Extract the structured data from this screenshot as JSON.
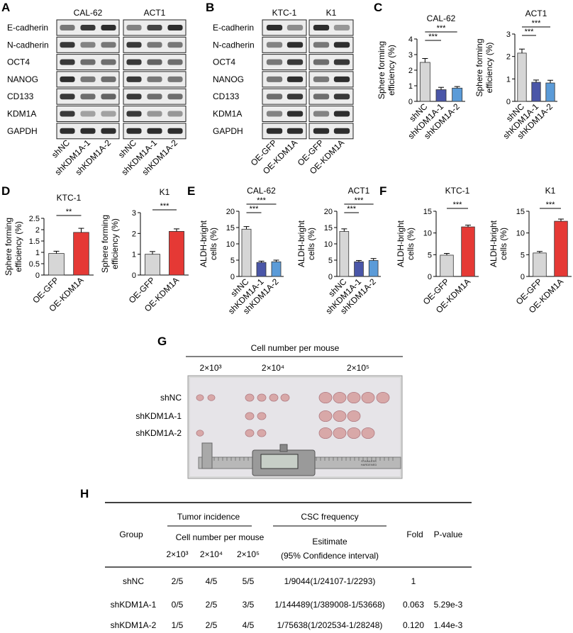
{
  "panels": {
    "A": {
      "letter": "A",
      "cell_lines": [
        "CAL-62",
        "ACT1"
      ],
      "proteins": [
        "E-cadherin",
        "N-cadherin",
        "OCT4",
        "NANOG",
        "CD133",
        "KDM1A",
        "GAPDH"
      ],
      "lanes": [
        "shNC",
        "shKDM1A-1",
        "shKDM1A-2",
        "shNC",
        "shKDM1A-1",
        "shKDM1A-2"
      ],
      "band_intensity": [
        [
          0.55,
          0.85,
          0.9,
          0.5,
          0.8,
          0.9
        ],
        [
          0.85,
          0.5,
          0.55,
          0.85,
          0.55,
          0.55
        ],
        [
          0.85,
          0.6,
          0.6,
          0.85,
          0.65,
          0.6
        ],
        [
          0.9,
          0.55,
          0.6,
          0.85,
          0.55,
          0.55
        ],
        [
          0.85,
          0.6,
          0.65,
          0.85,
          0.6,
          0.6
        ],
        [
          0.85,
          0.35,
          0.35,
          0.85,
          0.4,
          0.4
        ],
        [
          0.9,
          0.9,
          0.9,
          0.9,
          0.9,
          0.9
        ]
      ]
    },
    "B": {
      "letter": "B",
      "cell_lines": [
        "KTC-1",
        "K1"
      ],
      "proteins": [
        "E-cadherin",
        "N-cadherin",
        "OCT4",
        "NANOG",
        "CD133",
        "KDM1A",
        "GAPDH"
      ],
      "lanes": [
        "OE-GFP",
        "OE-KDM1A",
        "OE-GFP",
        "OE-KDM1A"
      ],
      "band_intensity": [
        [
          0.9,
          0.45,
          0.9,
          0.4
        ],
        [
          0.5,
          0.9,
          0.55,
          0.9
        ],
        [
          0.55,
          0.85,
          0.6,
          0.85
        ],
        [
          0.55,
          0.9,
          0.55,
          0.9
        ],
        [
          0.6,
          0.85,
          0.6,
          0.85
        ],
        [
          0.5,
          0.9,
          0.5,
          0.9
        ],
        [
          0.9,
          0.9,
          0.9,
          0.9
        ]
      ]
    },
    "C": {
      "letter": "C"
    },
    "D": {
      "letter": "D"
    },
    "E": {
      "letter": "E"
    },
    "F": {
      "letter": "F"
    },
    "G": {
      "letter": "G",
      "title": "Cell number per mouse",
      "cell_numbers": [
        "2×10³",
        "2×10⁴",
        "2×10⁵"
      ],
      "groups": [
        "shNC",
        "shKDM1A-1",
        "shKDM1A-2"
      ],
      "tumor_counts": [
        [
          2,
          4,
          5
        ],
        [
          0,
          2,
          3
        ],
        [
          1,
          2,
          4
        ]
      ],
      "ruler_text": [
        "STAINLESS",
        "HARDENED"
      ]
    },
    "H": {
      "letter": "H",
      "header": {
        "group": "Group",
        "tumor_incidence": "Tumor incidence",
        "csc_frequency": "CSC frequency",
        "cell_number": "Cell number per mouse",
        "doses": [
          "2×10³",
          "2×10⁴",
          "2×10⁵"
        ],
        "estimate": "Esitimate",
        "ci": "(95% Confidence interval)",
        "fold": "Fold",
        "pvalue": "P-value"
      },
      "rows": [
        {
          "group": "shNC",
          "incidence": [
            "2/5",
            "4/5",
            "5/5"
          ],
          "estimate": "1/9044(1/24107-1/2293)",
          "fold": "1",
          "pvalue": ""
        },
        {
          "group": "shKDM1A-1",
          "incidence": [
            "0/5",
            "2/5",
            "3/5"
          ],
          "estimate": "1/144489(1/389008-1/53668)",
          "fold": "0.063",
          "pvalue": "5.29e-3"
        },
        {
          "group": "shKDM1A-2",
          "incidence": [
            "1/5",
            "2/5",
            "4/5"
          ],
          "estimate": "1/75638(1/202534-1/28248)",
          "fold": "0.120",
          "pvalue": "1.44e-3"
        }
      ]
    }
  },
  "chart_data": [
    {
      "id": "C1",
      "panel": "C",
      "type": "bar",
      "title": "CAL-62",
      "ylabel": "Sphere forming efficiency (%)",
      "categories": [
        "shNC",
        "shKDM1A-1",
        "shKDM1A-2"
      ],
      "values": [
        2.5,
        0.75,
        0.85
      ],
      "errors": [
        0.25,
        0.15,
        0.1
      ],
      "colors": [
        "#d6d6d6",
        "#4a56a8",
        "#5b9bd8"
      ],
      "ylim": [
        0,
        4
      ],
      "yticks": [
        0,
        1,
        2,
        3,
        4
      ],
      "sig": [
        {
          "from": 0,
          "to": 1,
          "label": "***"
        },
        {
          "from": 0,
          "to": 2,
          "label": "***"
        }
      ]
    },
    {
      "id": "C2",
      "panel": "C",
      "type": "bar",
      "title": "ACT1",
      "ylabel": "Sphere forming efficiency (%)",
      "categories": [
        "shNC",
        "shKDM1A-1",
        "shKDM1A-2"
      ],
      "values": [
        2.15,
        0.85,
        0.82
      ],
      "errors": [
        0.18,
        0.1,
        0.12
      ],
      "colors": [
        "#d6d6d6",
        "#4a56a8",
        "#5b9bd8"
      ],
      "ylim": [
        0,
        3
      ],
      "yticks": [
        0,
        1,
        2,
        3
      ],
      "sig": [
        {
          "from": 0,
          "to": 1,
          "label": "***"
        },
        {
          "from": 0,
          "to": 2,
          "label": "***"
        }
      ]
    },
    {
      "id": "D1",
      "panel": "D",
      "type": "bar",
      "title": "KTC-1",
      "ylabel": "Sphere forming efficiency (%)",
      "categories": [
        "OE-GFP",
        "OE-KDM1A"
      ],
      "values": [
        0.95,
        1.88
      ],
      "errors": [
        0.1,
        0.18
      ],
      "colors": [
        "#d6d6d6",
        "#e53935"
      ],
      "ylim": [
        0,
        2.5
      ],
      "yticks": [
        0,
        0.5,
        1,
        1.5,
        2,
        2.5
      ],
      "sig": [
        {
          "from": 0,
          "to": 1,
          "label": "**"
        }
      ]
    },
    {
      "id": "D2",
      "panel": "D",
      "type": "bar",
      "title": "K1",
      "ylabel": "Sphere forming efficiency (%)",
      "categories": [
        "OE-GFP",
        "OE-KDM1A"
      ],
      "values": [
        1.0,
        2.1
      ],
      "errors": [
        0.13,
        0.12
      ],
      "colors": [
        "#d6d6d6",
        "#e53935"
      ],
      "ylim": [
        0,
        3
      ],
      "yticks": [
        0,
        1,
        2,
        3
      ],
      "sig": [
        {
          "from": 0,
          "to": 1,
          "label": "***"
        }
      ]
    },
    {
      "id": "E1",
      "panel": "E",
      "type": "bar",
      "title": "CAL-62",
      "ylabel": "ALDH-bright cells (%)",
      "categories": [
        "shNC",
        "shKDM1A-1",
        "shKDM1A-2"
      ],
      "values": [
        14.5,
        4.3,
        4.5
      ],
      "errors": [
        0.8,
        0.4,
        0.5
      ],
      "colors": [
        "#d6d6d6",
        "#4a56a8",
        "#5b9bd8"
      ],
      "ylim": [
        0,
        20
      ],
      "yticks": [
        0,
        5,
        10,
        15,
        20
      ],
      "sig": [
        {
          "from": 0,
          "to": 1,
          "label": "***"
        },
        {
          "from": 0,
          "to": 2,
          "label": "***"
        }
      ]
    },
    {
      "id": "E2",
      "panel": "E",
      "type": "bar",
      "title": "ACT1",
      "ylabel": "ALDH-bright cells (%)",
      "categories": [
        "shNC",
        "shKDM1A-1",
        "shKDM1A-2"
      ],
      "values": [
        13.8,
        4.5,
        4.9
      ],
      "errors": [
        0.8,
        0.4,
        0.6
      ],
      "colors": [
        "#d6d6d6",
        "#4a56a8",
        "#5b9bd8"
      ],
      "ylim": [
        0,
        20
      ],
      "yticks": [
        0,
        5,
        10,
        15,
        20
      ],
      "sig": [
        {
          "from": 0,
          "to": 1,
          "label": "***"
        },
        {
          "from": 0,
          "to": 2,
          "label": "***"
        }
      ]
    },
    {
      "id": "F1",
      "panel": "F",
      "type": "bar",
      "title": "KTC-1",
      "ylabel": "ALDH-bright cells (%)",
      "categories": [
        "OE-GFP",
        "OE-KDM1A"
      ],
      "values": [
        4.9,
        11.4
      ],
      "errors": [
        0.4,
        0.4
      ],
      "colors": [
        "#d6d6d6",
        "#e53935"
      ],
      "ylim": [
        0,
        15
      ],
      "yticks": [
        0,
        5,
        10,
        15
      ],
      "sig": [
        {
          "from": 0,
          "to": 1,
          "label": "***"
        }
      ]
    },
    {
      "id": "F2",
      "panel": "F",
      "type": "bar",
      "title": "K1",
      "ylabel": "ALDH-bright cells (%)",
      "categories": [
        "OE-GFP",
        "OE-KDM1A"
      ],
      "values": [
        5.4,
        12.7
      ],
      "errors": [
        0.35,
        0.5
      ],
      "colors": [
        "#d6d6d6",
        "#e53935"
      ],
      "ylim": [
        0,
        15
      ],
      "yticks": [
        0,
        5,
        10,
        15
      ],
      "sig": [
        {
          "from": 0,
          "to": 1,
          "label": "***"
        }
      ]
    }
  ]
}
